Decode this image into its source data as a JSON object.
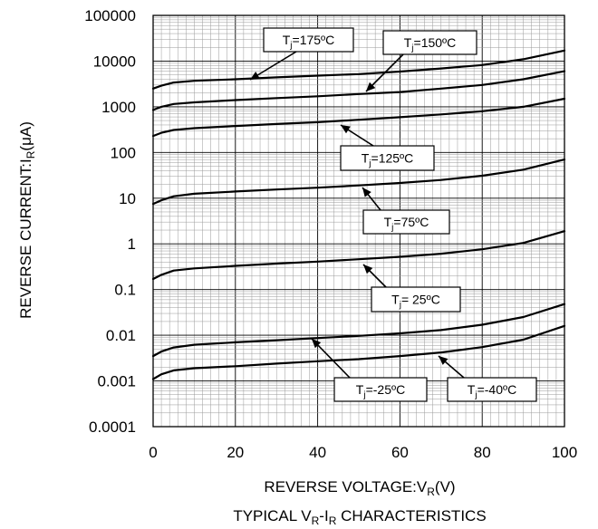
{
  "chart_data": {
    "type": "line",
    "title": "",
    "caption": {
      "pre": "TYPICAL V",
      "sub1": "R",
      "mid": "-I",
      "sub2": "R",
      "post": " CHARACTERISTICS"
    },
    "xlabel": {
      "main": "REVERSE VOLTAGE:V",
      "sub": "R",
      "post": "(V)"
    },
    "ylabel": {
      "main": "REVERSE CURRENT:I",
      "sub": "R",
      "post": "(μA)"
    },
    "x_scale": "linear",
    "y_scale": "log",
    "xlim": [
      0,
      100
    ],
    "ylim": [
      0.0001,
      100000
    ],
    "x_ticks": [
      "0",
      "20",
      "40",
      "60",
      "80",
      "100"
    ],
    "y_ticks": [
      "0.0001",
      "0.001",
      "0.01",
      "0.1",
      "1",
      "10",
      "100",
      "1000",
      "10000",
      "100000"
    ],
    "grid": true,
    "x": [
      0,
      2,
      5,
      10,
      20,
      30,
      40,
      50,
      60,
      70,
      80,
      90,
      100
    ],
    "series": [
      {
        "name": {
          "pre": "T",
          "sub": "j",
          "post": "=175ºC"
        },
        "values": [
          2500,
          2900,
          3400,
          3700,
          4000,
          4400,
          4800,
          5200,
          5900,
          6900,
          8200,
          11000,
          17000
        ]
      },
      {
        "name": {
          "pre": "T",
          "sub": "j",
          "post": "=150ºC"
        },
        "values": [
          850,
          1000,
          1150,
          1250,
          1400,
          1550,
          1700,
          1900,
          2100,
          2500,
          3000,
          4000,
          6000
        ]
      },
      {
        "name": {
          "pre": "T",
          "sub": "j",
          "post": "=125ºC"
        },
        "values": [
          230,
          270,
          310,
          340,
          380,
          420,
          460,
          520,
          590,
          680,
          800,
          1000,
          1500
        ]
      },
      {
        "name": {
          "pre": "T",
          "sub": "j",
          "post": "=75ºC"
        },
        "values": [
          7.5,
          9.0,
          11.0,
          12.5,
          14.0,
          15.5,
          17.0,
          19.0,
          21.5,
          25.0,
          31.0,
          42.0,
          70.0
        ]
      },
      {
        "name": {
          "pre": "T",
          "sub": "j",
          "post": "= 25ºC"
        },
        "values": [
          0.17,
          0.21,
          0.26,
          0.29,
          0.33,
          0.37,
          0.41,
          0.46,
          0.52,
          0.61,
          0.76,
          1.05,
          1.9
        ]
      },
      {
        "name": {
          "pre": "T",
          "sub": "j",
          "post": "=-25ºC"
        },
        "values": [
          0.0035,
          0.0044,
          0.0054,
          0.0062,
          0.007,
          0.0078,
          0.0087,
          0.0097,
          0.011,
          0.013,
          0.017,
          0.025,
          0.048
        ]
      },
      {
        "name": {
          "pre": "T",
          "sub": "j",
          "post": "=-40ºC"
        },
        "values": [
          0.0011,
          0.0014,
          0.0017,
          0.0019,
          0.0021,
          0.0024,
          0.0027,
          0.003,
          0.0035,
          0.0042,
          0.0055,
          0.008,
          0.016
        ]
      }
    ]
  }
}
